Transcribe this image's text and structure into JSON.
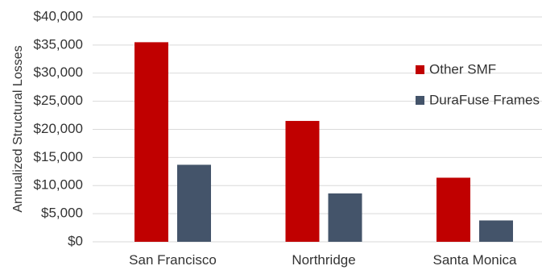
{
  "chart_data": {
    "type": "bar",
    "title": "",
    "xlabel": "",
    "ylabel": "Annualized Structural Losses",
    "categories": [
      "San Francisco",
      "Northridge",
      "Santa Monica"
    ],
    "series": [
      {
        "name": "Other SMF",
        "color": "#c00000",
        "values": [
          35500,
          21500,
          11400
        ]
      },
      {
        "name": "DuraFuse Frames",
        "color": "#44546a",
        "values": [
          13700,
          8600,
          3800
        ]
      }
    ],
    "ylim": [
      0,
      40000
    ],
    "yticks": [
      0,
      5000,
      10000,
      15000,
      20000,
      25000,
      30000,
      35000,
      40000
    ],
    "ytick_labels": [
      "$0",
      "$5,000",
      "$10,000",
      "$15,000",
      "$20,000",
      "$25,000",
      "$30,000",
      "$35,000",
      "$40,000"
    ],
    "grid": true,
    "legend_position": "right"
  }
}
